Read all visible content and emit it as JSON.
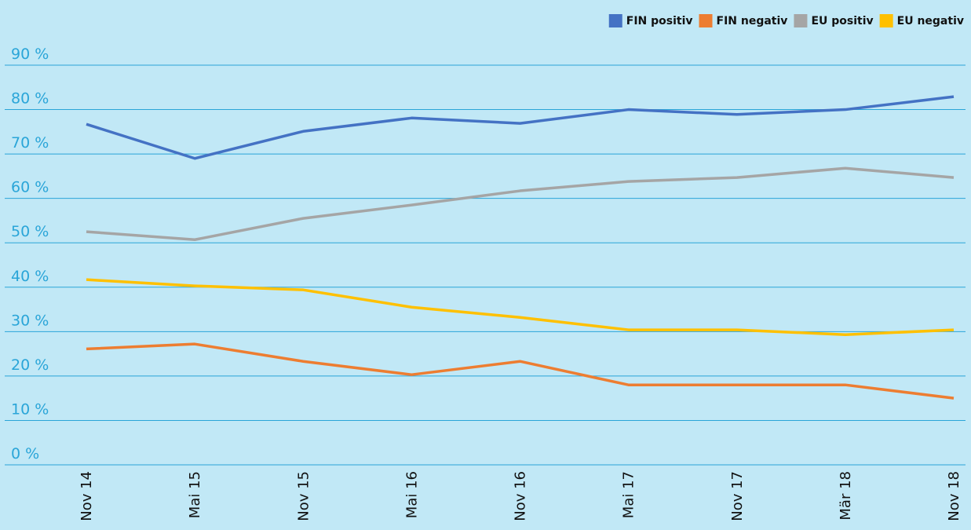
{
  "chart_data": {
    "type": "line",
    "categories": [
      "Nov 14",
      "Mai 15",
      "Nov 15",
      "Mai 16",
      "Nov 16",
      "Mai 17",
      "Nov 17",
      "Mär 18",
      "Nov 18"
    ],
    "series": [
      {
        "name": "FIN positiv",
        "color": "#4472c4",
        "values": [
          76.7,
          69,
          75.1,
          78.1,
          76.9,
          80,
          78.9,
          80,
          82.9
        ]
      },
      {
        "name": "FIN negativ",
        "color": "#ed7d31",
        "values": [
          26.1,
          27.2,
          23.3,
          20.3,
          23.3,
          18,
          18,
          18,
          15
        ]
      },
      {
        "name": "EU positiv",
        "color": "#a5a5a5",
        "values": [
          52.5,
          50.7,
          55.5,
          58.5,
          61.7,
          63.8,
          64.7,
          66.8,
          64.7
        ]
      },
      {
        "name": "EU negativ",
        "color": "#ffc000",
        "values": [
          41.7,
          40.3,
          39.4,
          35.5,
          33.2,
          30.4,
          30.4,
          29.3,
          30.4
        ]
      }
    ],
    "ylim": [
      0,
      90
    ],
    "yticks": [
      {
        "value": 0,
        "label": "0 %"
      },
      {
        "value": 10,
        "label": "10 %"
      },
      {
        "value": 20,
        "label": "20 %"
      },
      {
        "value": 30,
        "label": "30 %"
      },
      {
        "value": 40,
        "label": "40 %"
      },
      {
        "value": 50,
        "label": "50 %"
      },
      {
        "value": 60,
        "label": "60 %"
      },
      {
        "value": 70,
        "label": "70 %"
      },
      {
        "value": 80,
        "label": "80 %"
      },
      {
        "value": 90,
        "label": "90 %"
      }
    ],
    "grid": true
  }
}
